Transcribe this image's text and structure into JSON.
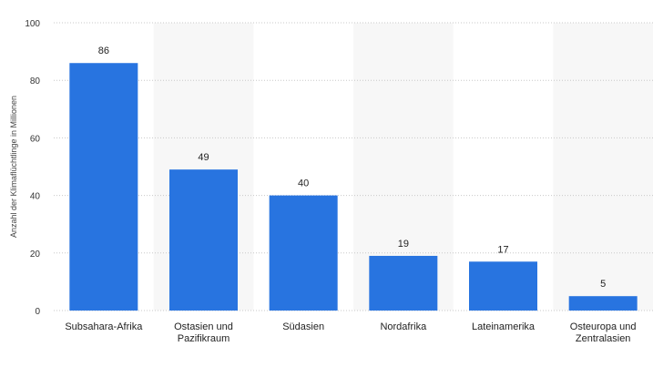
{
  "chart_data": {
    "type": "bar",
    "categories": [
      [
        "Subsahara-Afrika"
      ],
      [
        "Ostasien und",
        "Pazifikraum"
      ],
      [
        "Südasien"
      ],
      [
        "Nordafrika"
      ],
      [
        "Lateinamerika"
      ],
      [
        "Osteuropa und",
        "Zentralasien"
      ]
    ],
    "values": [
      86,
      49,
      40,
      19,
      17,
      5
    ],
    "value_labels": [
      "86",
      "49",
      "40",
      "19",
      "17",
      "5"
    ],
    "title": "",
    "xlabel": "",
    "ylabel": "Anzahl der Klimaflüchtlinge in Millionen",
    "ylim": [
      0,
      100
    ],
    "yticks": [
      0,
      20,
      40,
      60,
      80,
      100
    ],
    "grid": "horizontal dotted",
    "legend": "none",
    "bar_color": "#2874e0",
    "band_color": "#f7f7f7"
  }
}
